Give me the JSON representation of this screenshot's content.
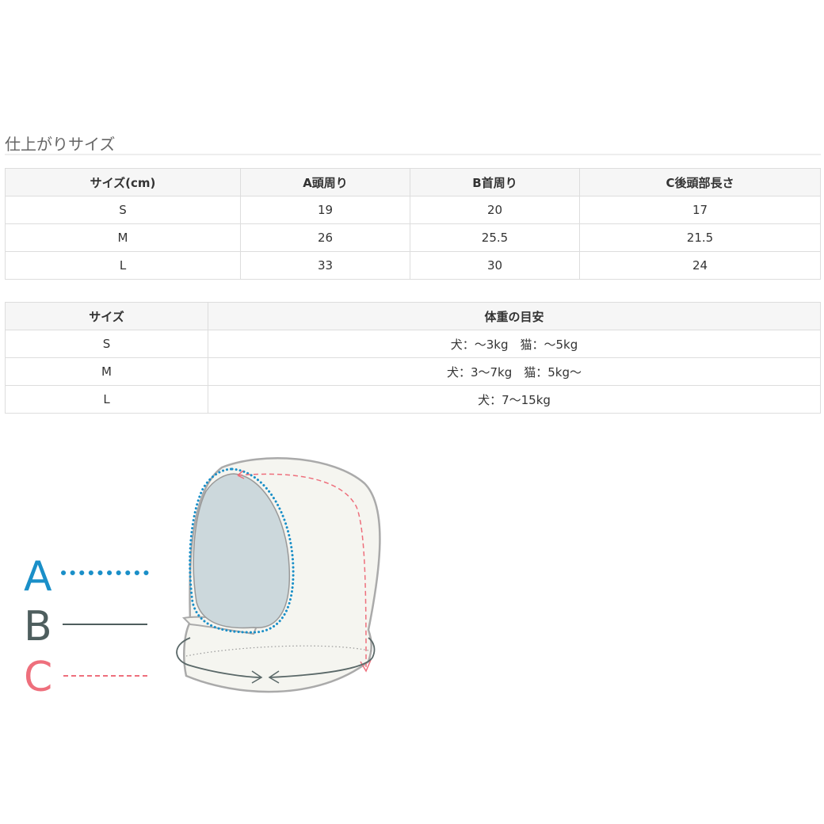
{
  "section_title": "仕上がりサイズ",
  "size_table": {
    "headers": [
      "サイズ(cm)",
      "A頭周り",
      "B首周り",
      "C後頭部長さ"
    ],
    "rows": [
      [
        "S",
        "19",
        "20",
        "17"
      ],
      [
        "M",
        "26",
        "25.5",
        "21.5"
      ],
      [
        "L",
        "33",
        "30",
        "24"
      ]
    ]
  },
  "weight_table": {
    "headers": [
      "サイズ",
      "体重の目安"
    ],
    "rows": [
      [
        "S",
        "犬：～3kg　猫：～5kg"
      ],
      [
        "M",
        "犬：3～7kg　猫：5kg～"
      ],
      [
        "L",
        "犬：7～15kg"
      ]
    ]
  },
  "diagram": {
    "legend": [
      {
        "letter": "A",
        "color": "#1a8fc8",
        "style": "dotted"
      },
      {
        "letter": "B",
        "color": "#4e5e5e",
        "style": "solid"
      },
      {
        "letter": "C",
        "color": "#ee6f7c",
        "style": "dashed"
      }
    ]
  }
}
